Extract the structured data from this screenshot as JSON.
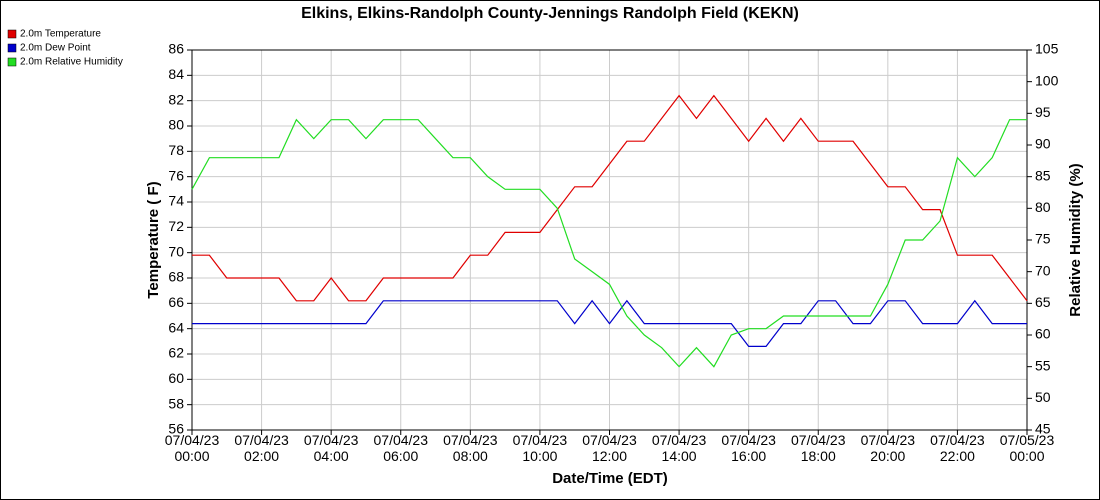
{
  "chart_data": {
    "type": "line",
    "title": "Elkins, Elkins-Randolph County-Jennings Randolph Field (KEKN)",
    "xlabel": "Date/Time (EDT)",
    "ylabel": "Temperature ( F)",
    "y2label": "Relative Humidity (%)",
    "x": [
      "07/04/23 00:00",
      "07/04/23 00:30",
      "07/04/23 01:00",
      "07/04/23 01:30",
      "07/04/23 02:00",
      "07/04/23 02:30",
      "07/04/23 03:00",
      "07/04/23 03:30",
      "07/04/23 04:00",
      "07/04/23 04:30",
      "07/04/23 05:00",
      "07/04/23 05:30",
      "07/04/23 06:00",
      "07/04/23 06:30",
      "07/04/23 07:00",
      "07/04/23 07:30",
      "07/04/23 08:00",
      "07/04/23 08:30",
      "07/04/23 09:00",
      "07/04/23 09:30",
      "07/04/23 10:00",
      "07/04/23 10:30",
      "07/04/23 11:00",
      "07/04/23 11:30",
      "07/04/23 12:00",
      "07/04/23 12:30",
      "07/04/23 13:00",
      "07/04/23 13:30",
      "07/04/23 14:00",
      "07/04/23 14:30",
      "07/04/23 15:00",
      "07/04/23 15:30",
      "07/04/23 16:00",
      "07/04/23 16:30",
      "07/04/23 17:00",
      "07/04/23 17:30",
      "07/04/23 18:00",
      "07/04/23 18:30",
      "07/04/23 19:00",
      "07/04/23 19:30",
      "07/04/23 20:00",
      "07/04/23 20:30",
      "07/04/23 21:00",
      "07/04/23 21:30",
      "07/04/23 22:00",
      "07/04/23 22:30",
      "07/04/23 23:00",
      "07/04/23 23:30",
      "07/05/23 00:00"
    ],
    "series": [
      {
        "name": "2.0m Temperature",
        "color": "#e00000",
        "values": [
          69.8,
          69.8,
          68,
          68,
          68,
          68,
          66.2,
          66.2,
          68,
          66.2,
          66.2,
          68,
          68,
          68,
          68,
          68,
          69.8,
          69.8,
          71.6,
          71.6,
          71.6,
          73.4,
          75.2,
          75.2,
          77,
          78.8,
          78.8,
          80.6,
          82.4,
          80.6,
          82.4,
          80.6,
          78.8,
          80.6,
          78.8,
          80.6,
          78.8,
          78.8,
          78.8,
          77,
          75.2,
          75.2,
          73.4,
          73.4,
          69.8,
          69.8,
          69.8,
          68,
          66.2
        ]
      },
      {
        "name": "2.0m Dew Point",
        "color": "#0000cc",
        "values": [
          64.4,
          64.4,
          64.4,
          64.4,
          64.4,
          64.4,
          64.4,
          64.4,
          64.4,
          64.4,
          64.4,
          66.2,
          66.2,
          66.2,
          66.2,
          66.2,
          66.2,
          66.2,
          66.2,
          66.2,
          66.2,
          66.2,
          64.4,
          66.2,
          64.4,
          66.2,
          64.4,
          64.4,
          64.4,
          64.4,
          64.4,
          64.4,
          62.6,
          62.6,
          64.4,
          64.4,
          66.2,
          66.2,
          64.4,
          64.4,
          66.2,
          66.2,
          64.4,
          64.4,
          64.4,
          66.2,
          64.4,
          64.4,
          64.4
        ]
      },
      {
        "name": "2.0m Relative Humidity",
        "color": "#22dd22",
        "axis": "y2",
        "values": [
          83,
          88,
          88,
          88,
          88,
          88,
          94,
          91,
          94,
          94,
          91,
          94,
          94,
          94,
          91,
          88,
          88,
          85,
          83,
          83,
          83,
          80,
          72,
          70,
          68,
          63,
          60,
          58,
          55,
          58,
          55,
          60,
          61,
          61,
          63,
          63,
          63,
          63,
          63,
          63,
          68,
          75,
          75,
          78,
          88,
          85,
          88,
          94,
          94
        ]
      }
    ],
    "xlim": [
      "07/04/23 00:00",
      "07/05/23 00:00"
    ],
    "xticks": [
      "07/04/23 00:00",
      "07/04/23 02:00",
      "07/04/23 04:00",
      "07/04/23 06:00",
      "07/04/23 08:00",
      "07/04/23 10:00",
      "07/04/23 12:00",
      "07/04/23 14:00",
      "07/04/23 16:00",
      "07/04/23 18:00",
      "07/04/23 20:00",
      "07/04/23 22:00",
      "07/05/23 00:00"
    ],
    "ylim": [
      56,
      86
    ],
    "yticks": [
      56,
      58,
      60,
      62,
      64,
      66,
      68,
      70,
      72,
      74,
      76,
      78,
      80,
      82,
      84,
      86
    ],
    "y2lim": [
      45,
      105
    ],
    "y2ticks": [
      45,
      50,
      55,
      60,
      65,
      70,
      75,
      80,
      85,
      90,
      95,
      100,
      105
    ],
    "grid": true,
    "legend": "top-left"
  }
}
